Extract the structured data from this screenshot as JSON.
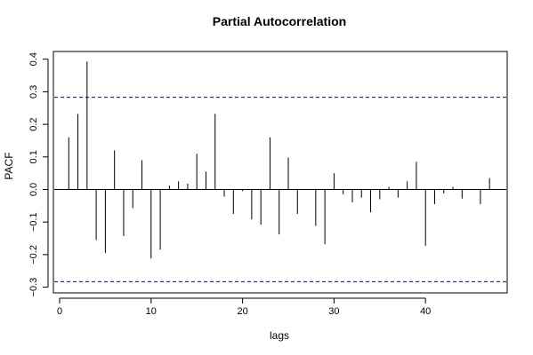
{
  "chart_data": {
    "type": "bar",
    "title": "Partial Autocorrelation",
    "xlabel": "lags",
    "ylabel": "PACF",
    "xlim": [
      -1,
      48
    ],
    "ylim": [
      -0.3,
      0.4
    ],
    "x_ticks": [
      0,
      10,
      20,
      30,
      40
    ],
    "y_ticks": [
      -0.3,
      -0.2,
      -0.1,
      0.0,
      0.1,
      0.2,
      0.3,
      0.4
    ],
    "y_tick_labels": [
      "−0.3",
      "−0.2",
      "−0.1",
      "0.0",
      "0.1",
      "0.2",
      "0.3",
      "0.4"
    ],
    "confidence_bound": 0.283,
    "lags": [
      1,
      2,
      3,
      4,
      5,
      6,
      7,
      8,
      9,
      10,
      11,
      12,
      13,
      14,
      15,
      16,
      17,
      18,
      19,
      20,
      21,
      22,
      23,
      24,
      25,
      26,
      27,
      28,
      29,
      30,
      31,
      32,
      33,
      34,
      35,
      36,
      37,
      38,
      39,
      40,
      41,
      42,
      43,
      44,
      45,
      46,
      47
    ],
    "values": [
      0.16,
      0.232,
      0.393,
      -0.155,
      -0.195,
      0.12,
      -0.143,
      -0.057,
      0.09,
      -0.212,
      -0.185,
      0.012,
      0.025,
      0.018,
      0.11,
      0.055,
      0.232,
      -0.022,
      -0.075,
      -0.005,
      -0.092,
      -0.108,
      0.16,
      -0.138,
      0.098,
      -0.075,
      0.0,
      -0.112,
      -0.168,
      0.05,
      -0.015,
      -0.04,
      -0.025,
      -0.07,
      -0.03,
      0.008,
      -0.025,
      0.025,
      0.085,
      -0.173,
      -0.045,
      -0.012,
      0.008,
      -0.028,
      0.0,
      -0.045,
      0.035
    ],
    "colors": {
      "spike": "#000000",
      "bound": "#0000cc",
      "axis": "#000000"
    }
  }
}
